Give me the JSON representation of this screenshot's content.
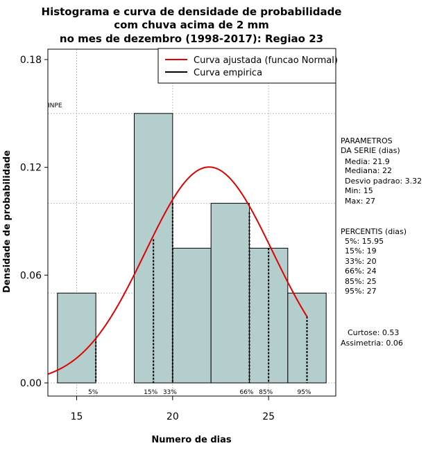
{
  "chart_data": {
    "type": "histogram",
    "title_lines": [
      "Histograma e curva de densidade de probabilidade",
      "com chuva acima de 2 mm",
      "no mes de dezembro (1998-2017): Regiao 23"
    ],
    "xlabel": "Numero de dias",
    "ylabel": "Densidade de probabilidade",
    "xlim": [
      13.5,
      28.5
    ],
    "ylim": [
      0,
      0.18
    ],
    "xticks": [
      15,
      20,
      25
    ],
    "yticks": [
      0.0,
      0.06,
      0.12,
      0.18
    ],
    "ytick_labels": [
      "0.00",
      "0.06",
      "0.12",
      "0.18"
    ],
    "grid_y": [
      0.05,
      0.1,
      0.15
    ],
    "grid_x": [
      15,
      20,
      25
    ],
    "bins": [
      {
        "start": 14,
        "end": 16,
        "density": 0.05
      },
      {
        "start": 16,
        "end": 18,
        "density": 0.0
      },
      {
        "start": 18,
        "end": 20,
        "density": 0.15
      },
      {
        "start": 20,
        "end": 22,
        "density": 0.075
      },
      {
        "start": 22,
        "end": 24,
        "density": 0.1
      },
      {
        "start": 24,
        "end": 26,
        "density": 0.075
      },
      {
        "start": 26,
        "end": 28,
        "density": 0.05
      }
    ],
    "fitted_normal": {
      "mean": 21.9,
      "sd": 3.32,
      "x_range": [
        13.5,
        27
      ]
    },
    "percentile_lines": [
      {
        "label": "5%",
        "x": 16,
        "y": 0.025
      },
      {
        "label": "15%",
        "x": 19,
        "y": 0.08
      },
      {
        "label": "33%",
        "x": 20,
        "y": 0.1
      },
      {
        "label": "66%",
        "x": 24,
        "y": 0.095
      },
      {
        "label": "85%",
        "x": 25,
        "y": 0.075
      },
      {
        "label": "95%",
        "x": 27,
        "y": 0.037
      }
    ],
    "legend": [
      {
        "label": "Curva ajustada (funcao Normal)",
        "color": "#e00000"
      },
      {
        "label": "Curva empirica",
        "color": "#000000"
      }
    ],
    "watermark": "INPE",
    "colors": {
      "bar_fill": "#b4cdcd",
      "curve": "#e00000",
      "grid": "#bebebe"
    }
  },
  "side_panel": {
    "params_title": [
      "PARAMETROS",
      "DA SERIE (dias)"
    ],
    "params": [
      "Media: 21.9",
      "Mediana: 22",
      "Desvio padrao: 3.32",
      "Min: 15",
      "Max: 27"
    ],
    "percentis_title": "PERCENTIS (dias)",
    "percentis": [
      "5%: 15.95",
      "15%: 19",
      "33%: 20",
      "66%: 24",
      "85%: 25",
      "95%: 27"
    ],
    "curtose": "Curtose: 0.53",
    "assimetria": "Assimetria: 0.06"
  }
}
